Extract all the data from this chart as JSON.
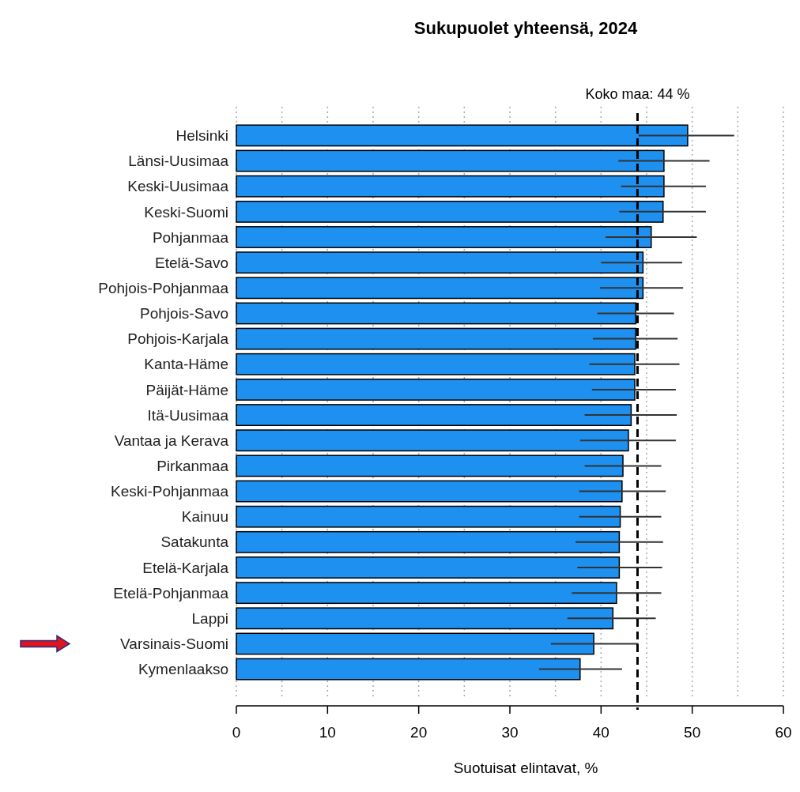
{
  "chart_data": {
    "type": "bar",
    "orientation": "horizontal",
    "title": "Sukupuolet yhteensä, 2024",
    "xlabel": "Suotuisat elintavat, %",
    "categories": [
      "Helsinki",
      "Länsi-Uusimaa",
      "Keski-Uusimaa",
      "Keski-Suomi",
      "Pohjanmaa",
      "Etelä-Savo",
      "Pohjois-Pohjanmaa",
      "Pohjois-Savo",
      "Pohjois-Karjala",
      "Kanta-Häme",
      "Päijät-Häme",
      "Itä-Uusimaa",
      "Vantaa ja Kerava",
      "Pirkanmaa",
      "Keski-Pohjanmaa",
      "Kainuu",
      "Satakunta",
      "Etelä-Karjala",
      "Etelä-Pohjanmaa",
      "Lappi",
      "Varsinais-Suomi",
      "Kymenlaakso"
    ],
    "values": [
      49.5,
      46.9,
      46.9,
      46.8,
      45.5,
      44.6,
      44.6,
      43.8,
      43.8,
      43.7,
      43.7,
      43.3,
      43.0,
      42.4,
      42.3,
      42.1,
      42.0,
      42.0,
      41.7,
      41.3,
      39.2,
      37.7
    ],
    "errors": [
      [
        44.1,
        54.6
      ],
      [
        41.9,
        51.9
      ],
      [
        42.2,
        51.5
      ],
      [
        42.0,
        51.5
      ],
      [
        40.5,
        50.5
      ],
      [
        40.0,
        48.9
      ],
      [
        39.9,
        49.0
      ],
      [
        39.6,
        48.0
      ],
      [
        39.1,
        48.4
      ],
      [
        38.7,
        48.6
      ],
      [
        39.0,
        48.2
      ],
      [
        38.2,
        48.3
      ],
      [
        37.7,
        48.2
      ],
      [
        38.2,
        46.6
      ],
      [
        37.6,
        47.1
      ],
      [
        37.6,
        46.6
      ],
      [
        37.2,
        46.8
      ],
      [
        37.4,
        46.7
      ],
      [
        36.8,
        46.6
      ],
      [
        36.3,
        46.0
      ],
      [
        34.5,
        44.1
      ],
      [
        33.2,
        42.3
      ]
    ],
    "color": "#1e90f0",
    "xlim": [
      0,
      60
    ],
    "xticks": [
      0,
      {
        "value": 5,
        "label": null
      },
      10,
      {
        "value": 15,
        "label": null
      },
      20,
      {
        "value": 25,
        "label": null
      },
      30,
      {
        "value": 35,
        "label": null
      },
      40,
      {
        "value": 45,
        "label": null
      },
      50,
      {
        "value": 55,
        "label": null
      },
      60
    ],
    "grid": "x",
    "ref_lines": [
      {
        "axis": "x",
        "value": 44,
        "label": "Koko maa: 44 %",
        "color": "#000000",
        "line_style": "dashed"
      }
    ]
  }
}
